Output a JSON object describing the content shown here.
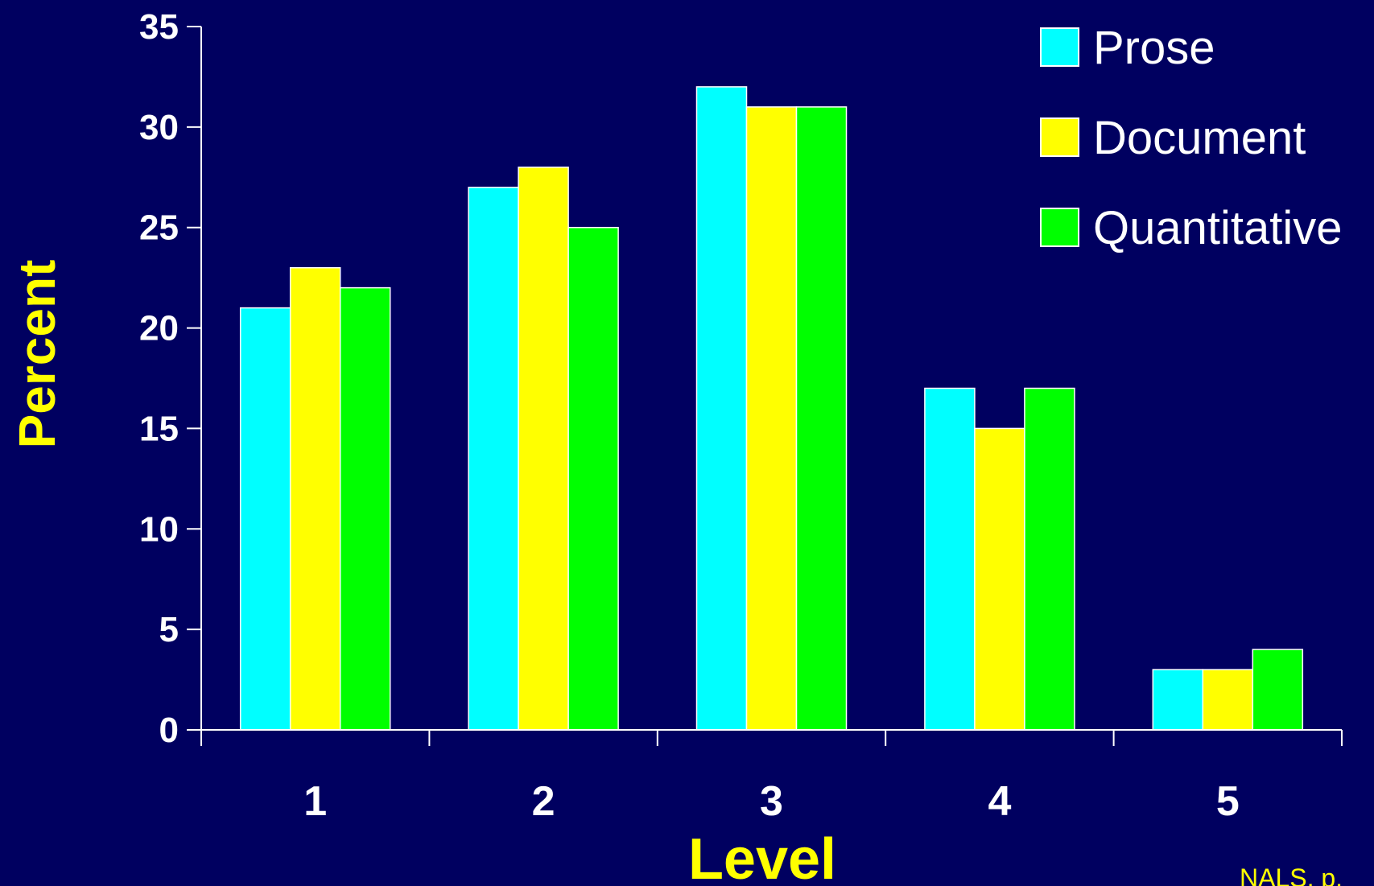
{
  "colors": {
    "background": "#000060",
    "axis": "#ffffff",
    "tick_text": "#ffffff",
    "axis_title": "#ffff00",
    "bar_outline": "#ffffff"
  },
  "source_note": "NALS, p.",
  "chart_data": {
    "type": "bar",
    "title": "",
    "xlabel": "Level",
    "ylabel": "Percent",
    "categories": [
      "1",
      "2",
      "3",
      "4",
      "5"
    ],
    "ylim": [
      0,
      35
    ],
    "yticks": [
      "0",
      "5",
      "10",
      "15",
      "20",
      "25",
      "30",
      "35"
    ],
    "grid": false,
    "legend_position": "top-right",
    "series": [
      {
        "name": "Prose",
        "color": "#00ffff",
        "values": [
          21,
          27,
          32,
          17,
          3
        ]
      },
      {
        "name": "Document",
        "color": "#ffff00",
        "values": [
          23,
          28,
          31,
          15,
          3
        ]
      },
      {
        "name": "Quantitative",
        "color": "#00ff00",
        "values": [
          22,
          25,
          31,
          17,
          4
        ]
      }
    ]
  }
}
